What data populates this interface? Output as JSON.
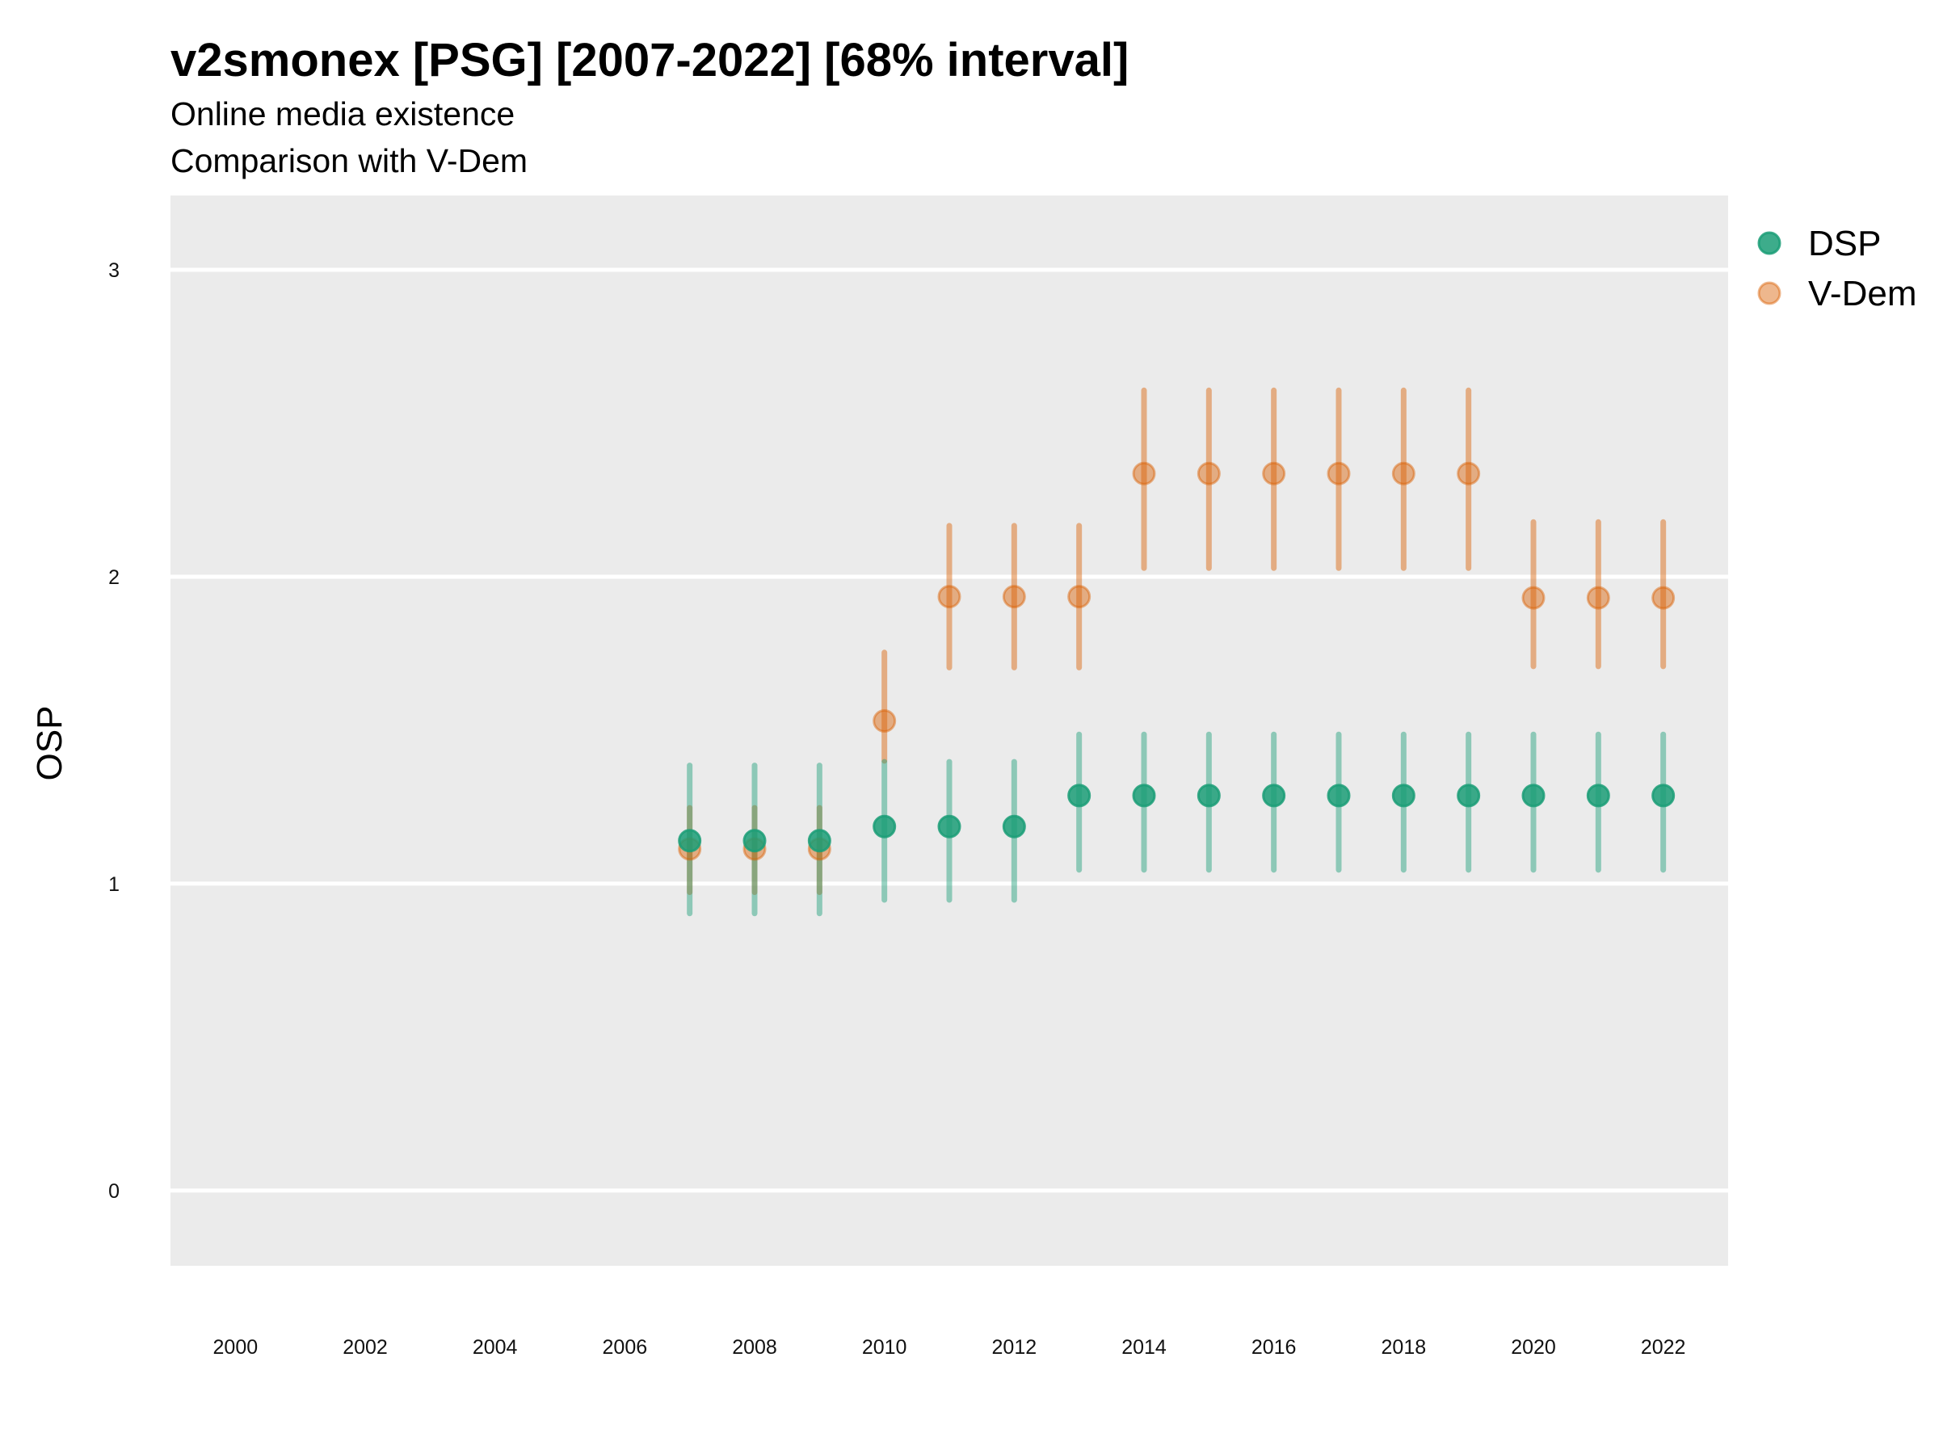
{
  "chart_data": {
    "type": "scatter",
    "title": "v2smonex [PSG] [2007-2022] [68% interval]",
    "subtitle": [
      "Online media existence",
      "Comparison with V-Dem"
    ],
    "xlabel": "",
    "ylabel": "OSP",
    "xlim": [
      1999,
      2023
    ],
    "ylim": [
      -0.245,
      3.242
    ],
    "x_ticks": [
      2000,
      2002,
      2004,
      2006,
      2008,
      2010,
      2012,
      2014,
      2016,
      2018,
      2020,
      2022
    ],
    "y_ticks": [
      0,
      1,
      2,
      3
    ],
    "grid": true,
    "legend_position": "right-top",
    "series": [
      {
        "name": "DSP",
        "color": "#1b9e77",
        "x": [
          2007,
          2008,
          2009,
          2010,
          2011,
          2012,
          2013,
          2014,
          2015,
          2016,
          2017,
          2018,
          2019,
          2020,
          2021,
          2022
        ],
        "y": [
          1.14,
          1.14,
          1.14,
          1.186,
          1.186,
          1.186,
          1.287,
          1.287,
          1.287,
          1.287,
          1.287,
          1.287,
          1.287,
          1.287,
          1.287,
          1.287
        ],
        "lower": [
          0.903,
          0.903,
          0.903,
          0.947,
          0.947,
          0.947,
          1.045,
          1.045,
          1.045,
          1.045,
          1.045,
          1.045,
          1.045,
          1.045,
          1.045,
          1.045
        ],
        "upper": [
          1.385,
          1.385,
          1.385,
          1.397,
          1.397,
          1.397,
          1.486,
          1.486,
          1.486,
          1.486,
          1.486,
          1.486,
          1.486,
          1.486,
          1.486,
          1.486
        ]
      },
      {
        "name": "V-Dem",
        "color": "#d95f02",
        "x": [
          2007,
          2008,
          2009,
          2010,
          2011,
          2012,
          2013,
          2014,
          2015,
          2016,
          2017,
          2018,
          2019,
          2020,
          2021,
          2022
        ],
        "y": [
          1.113,
          1.113,
          1.113,
          1.53,
          1.935,
          1.935,
          1.935,
          2.336,
          2.336,
          2.336,
          2.336,
          2.336,
          2.336,
          1.931,
          1.931,
          1.931
        ],
        "lower": [
          0.972,
          0.972,
          0.972,
          1.4,
          1.704,
          1.704,
          1.704,
          2.028,
          2.028,
          2.028,
          2.028,
          2.028,
          2.028,
          1.708,
          1.708,
          1.708
        ],
        "upper": [
          1.247,
          1.247,
          1.247,
          1.753,
          2.166,
          2.166,
          2.166,
          2.607,
          2.607,
          2.607,
          2.607,
          2.607,
          2.607,
          2.178,
          2.178,
          2.178
        ]
      }
    ]
  }
}
